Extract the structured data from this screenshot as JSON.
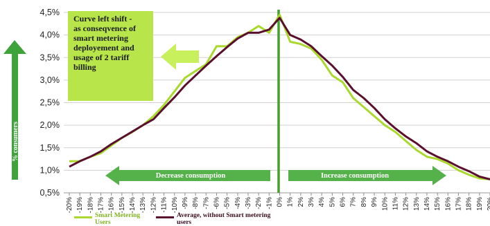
{
  "chart_data": {
    "type": "line",
    "x": [
      "-20%",
      "-19%",
      "-18%",
      "-17%",
      "-16%",
      "-15%",
      "-14%",
      "-13%",
      "-12%",
      "-11%",
      "-10%",
      "-9%",
      "-8%",
      "-7%",
      "-6%",
      "-5%",
      "-4%",
      "-3%",
      "-2%",
      "-1%",
      "0%",
      "1%",
      "2%",
      "3%",
      "4%",
      "5%",
      "6%",
      "7%",
      "8%",
      "9%",
      "10%",
      "11%",
      "12%",
      "13%",
      "14%",
      "15%",
      "16%",
      "17%",
      "18%",
      "19%",
      "20%"
    ],
    "y_ticks": [
      "0,5%",
      "1,0%",
      "1,5%",
      "2,0%",
      "2,5%",
      "3,0%",
      "3,5%",
      "4,0%",
      "4,5%"
    ],
    "ylim": [
      0.5,
      4.5
    ],
    "ylabel": "% consumers",
    "series": [
      {
        "name": "Smart Metering Users",
        "color": "#a8d92c",
        "values": [
          1.2,
          1.2,
          1.3,
          1.38,
          1.55,
          1.72,
          1.85,
          2.0,
          2.2,
          2.45,
          2.75,
          3.05,
          3.2,
          3.35,
          3.75,
          3.75,
          3.95,
          4.05,
          4.2,
          4.05,
          4.45,
          3.85,
          3.8,
          3.7,
          3.45,
          3.1,
          2.95,
          2.6,
          2.4,
          2.2,
          2.0,
          1.85,
          1.65,
          1.45,
          1.3,
          1.25,
          1.15,
          1.0,
          0.9,
          0.82,
          0.8
        ]
      },
      {
        "name": "Average, without Smart metering users",
        "color": "#5a0f2e",
        "values": [
          1.08,
          1.2,
          1.3,
          1.42,
          1.58,
          1.72,
          1.86,
          2.0,
          2.13,
          2.38,
          2.62,
          2.88,
          3.1,
          3.32,
          3.53,
          3.73,
          3.92,
          4.05,
          4.05,
          4.12,
          4.38,
          4.0,
          3.9,
          3.75,
          3.53,
          3.32,
          3.07,
          2.78,
          2.6,
          2.38,
          2.13,
          1.93,
          1.75,
          1.6,
          1.42,
          1.3,
          1.2,
          1.08,
          0.98,
          0.86,
          0.8
        ]
      }
    ],
    "grid": true,
    "annotations": {
      "callout": "Curve left shift -\nas conseqvence of\nsmart metering\ndeployement and\nusage of 2 tariff billing",
      "decrease": "Decrease consumption",
      "increase": "Increase consumption"
    }
  }
}
